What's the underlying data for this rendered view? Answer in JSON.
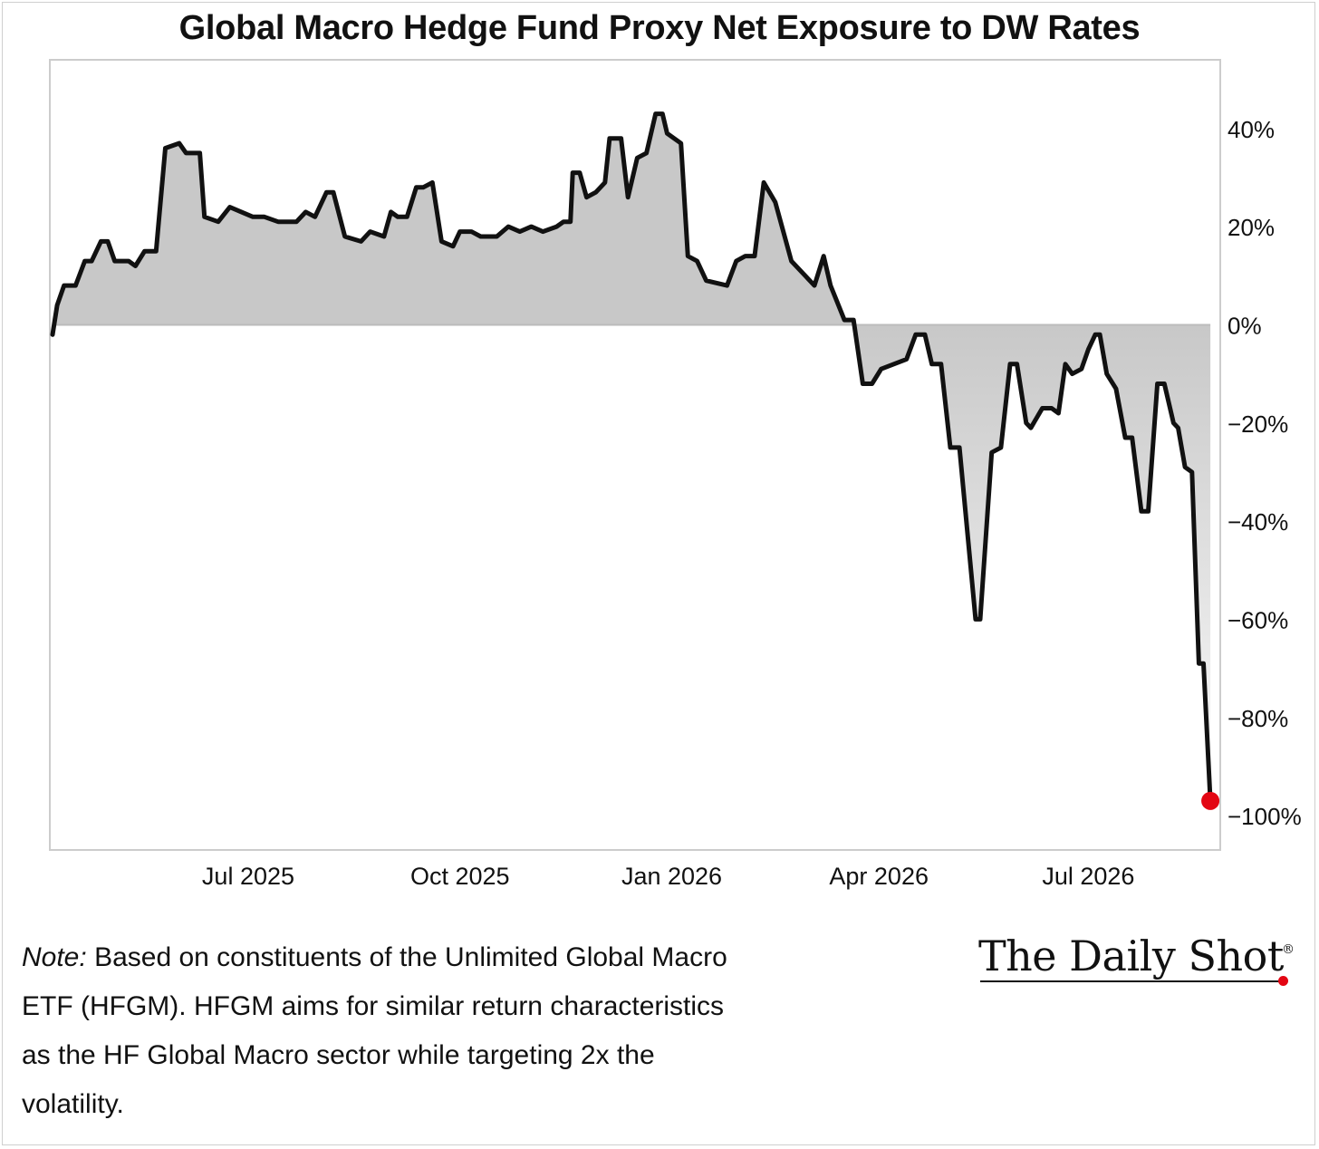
{
  "title": "Global Macro Hedge Fund Proxy Net Exposure to DW Rates",
  "note_label": "Note:",
  "note_text": "Based on constituents of the Unlimited Global Macro ETF (HFGM). HFGM aims for similar return characteristics as the HF Global Macro sector while targeting 2x the volatility.",
  "logo_text": "The Daily Shot",
  "logo_mark": "®",
  "colors": {
    "line": "#111111",
    "fill": "#c8c8c8",
    "endpoint": "#e30613",
    "zero_line": "#bbbbbb"
  },
  "chart_data": {
    "type": "area",
    "y_unit": "%",
    "ylim": [
      -107,
      54
    ],
    "yticks": [
      40,
      20,
      0,
      -20,
      -40,
      -60,
      -80,
      -100
    ],
    "ytick_labels": [
      "40%",
      "20%",
      "0%",
      "−20%",
      "−40%",
      "−60%",
      "−80%",
      "−100%"
    ],
    "xlim": [
      "2025-04-07",
      "2026-08-21"
    ],
    "xticks": [
      "2025-07-01",
      "2025-10-01",
      "2026-01-01",
      "2026-04-01",
      "2026-07-01"
    ],
    "xtick_labels": [
      "Jul 2025",
      "Oct 2025",
      "Jan 2026",
      "Apr 2026",
      "Jul 2026"
    ],
    "grid": false,
    "legend": "none",
    "highlight_last_point": true,
    "series": [
      {
        "points": [
          [
            "2025-04-07",
            -2
          ],
          [
            "2025-04-09",
            4
          ],
          [
            "2025-04-12",
            8
          ],
          [
            "2025-04-17",
            8
          ],
          [
            "2025-04-21",
            13
          ],
          [
            "2025-04-24",
            13
          ],
          [
            "2025-04-28",
            17
          ],
          [
            "2025-05-01",
            17
          ],
          [
            "2025-05-04",
            13
          ],
          [
            "2025-05-10",
            13
          ],
          [
            "2025-05-13",
            12
          ],
          [
            "2025-05-17",
            15
          ],
          [
            "2025-05-22",
            15
          ],
          [
            "2025-05-26",
            36
          ],
          [
            "2025-06-01",
            37
          ],
          [
            "2025-06-04",
            35
          ],
          [
            "2025-06-10",
            35
          ],
          [
            "2025-06-12",
            22
          ],
          [
            "2025-06-18",
            21
          ],
          [
            "2025-06-23",
            24
          ],
          [
            "2025-06-28",
            23
          ],
          [
            "2025-07-03",
            22
          ],
          [
            "2025-07-08",
            22
          ],
          [
            "2025-07-14",
            21
          ],
          [
            "2025-07-22",
            21
          ],
          [
            "2025-07-26",
            23
          ],
          [
            "2025-07-30",
            22
          ],
          [
            "2025-08-04",
            27
          ],
          [
            "2025-08-07",
            27
          ],
          [
            "2025-08-12",
            18
          ],
          [
            "2025-08-19",
            17
          ],
          [
            "2025-08-23",
            19
          ],
          [
            "2025-08-29",
            18
          ],
          [
            "2025-09-01",
            23
          ],
          [
            "2025-09-04",
            22
          ],
          [
            "2025-09-08",
            22
          ],
          [
            "2025-09-12",
            28
          ],
          [
            "2025-09-15",
            28
          ],
          [
            "2025-09-19",
            29
          ],
          [
            "2025-09-23",
            17
          ],
          [
            "2025-09-28",
            16
          ],
          [
            "2025-10-01",
            19
          ],
          [
            "2025-10-06",
            19
          ],
          [
            "2025-10-10",
            18
          ],
          [
            "2025-10-17",
            18
          ],
          [
            "2025-10-22",
            20
          ],
          [
            "2025-10-27",
            19
          ],
          [
            "2025-11-01",
            20
          ],
          [
            "2025-11-06",
            19
          ],
          [
            "2025-11-12",
            20
          ],
          [
            "2025-11-15",
            21
          ],
          [
            "2025-11-18",
            21
          ],
          [
            "2025-11-19",
            31
          ],
          [
            "2025-11-22",
            31
          ],
          [
            "2025-11-25",
            26
          ],
          [
            "2025-11-29",
            27
          ],
          [
            "2025-12-03",
            29
          ],
          [
            "2025-12-05",
            38
          ],
          [
            "2025-12-10",
            38
          ],
          [
            "2025-12-13",
            26
          ],
          [
            "2025-12-17",
            34
          ],
          [
            "2025-12-21",
            35
          ],
          [
            "2025-12-25",
            43
          ],
          [
            "2025-12-28",
            43
          ],
          [
            "2025-12-30",
            39
          ],
          [
            "2026-01-05",
            37
          ],
          [
            "2026-01-08",
            14
          ],
          [
            "2026-01-12",
            13
          ],
          [
            "2026-01-16",
            9
          ],
          [
            "2026-01-25",
            8
          ],
          [
            "2026-01-29",
            13
          ],
          [
            "2026-02-02",
            14
          ],
          [
            "2026-02-06",
            14
          ],
          [
            "2026-02-10",
            29
          ],
          [
            "2026-02-15",
            25
          ],
          [
            "2026-02-22",
            13
          ],
          [
            "2026-02-28",
            10
          ],
          [
            "2026-03-04",
            8
          ],
          [
            "2026-03-08",
            14
          ],
          [
            "2026-03-11",
            8
          ],
          [
            "2026-03-17",
            1
          ],
          [
            "2026-03-21",
            1
          ],
          [
            "2026-03-25",
            -12
          ],
          [
            "2026-03-29",
            -12
          ],
          [
            "2026-04-02",
            -9
          ],
          [
            "2026-04-13",
            -7
          ],
          [
            "2026-04-17",
            -2
          ],
          [
            "2026-04-21",
            -2
          ],
          [
            "2026-04-24",
            -8
          ],
          [
            "2026-04-28",
            -8
          ],
          [
            "2026-05-02",
            -25
          ],
          [
            "2026-05-06",
            -25
          ],
          [
            "2026-05-13",
            -60
          ],
          [
            "2026-05-15",
            -60
          ],
          [
            "2026-05-20",
            -26
          ],
          [
            "2026-05-24",
            -25
          ],
          [
            "2026-05-28",
            -8
          ],
          [
            "2026-05-31",
            -8
          ],
          [
            "2026-06-04",
            -20
          ],
          [
            "2026-06-06",
            -21
          ],
          [
            "2026-06-11",
            -17
          ],
          [
            "2026-06-15",
            -17
          ],
          [
            "2026-06-18",
            -18
          ],
          [
            "2026-06-21",
            -8
          ],
          [
            "2026-06-24",
            -10
          ],
          [
            "2026-06-28",
            -9
          ],
          [
            "2026-07-01",
            -5
          ],
          [
            "2026-07-04",
            -2
          ],
          [
            "2026-07-06",
            -2
          ],
          [
            "2026-07-09",
            -10
          ],
          [
            "2026-07-13",
            -13
          ],
          [
            "2026-07-17",
            -23
          ],
          [
            "2026-07-20",
            -23
          ],
          [
            "2026-07-24",
            -38
          ],
          [
            "2026-07-27",
            -38
          ],
          [
            "2026-07-31",
            -12
          ],
          [
            "2026-08-03",
            -12
          ],
          [
            "2026-08-07",
            -20
          ],
          [
            "2026-08-09",
            -21
          ],
          [
            "2026-08-12",
            -29
          ],
          [
            "2026-08-15",
            -30
          ],
          [
            "2026-08-18",
            -69
          ],
          [
            "2026-08-20",
            -69
          ],
          [
            "2026-08-23",
            -97
          ]
        ]
      }
    ]
  }
}
